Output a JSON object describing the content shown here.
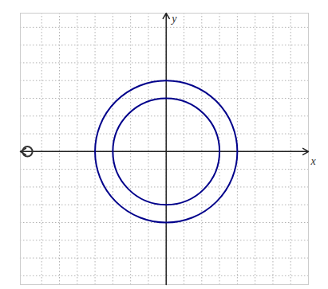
{
  "chart_data": {
    "type": "circles",
    "xlabel": "x",
    "ylabel": "y",
    "xlim": [
      -8.2,
      8.0
    ],
    "ylim": [
      -7.5,
      7.8
    ],
    "xticks": [
      -7,
      -6,
      -5,
      -4,
      -3,
      -2,
      -1,
      0,
      1,
      2,
      3,
      4,
      5,
      6,
      7
    ],
    "yticks": [
      -7,
      -6,
      -5,
      -4,
      -3,
      -2,
      -1,
      0,
      1,
      2,
      3,
      4,
      5,
      6,
      7
    ],
    "grid": true,
    "tick_labels": false,
    "circles": [
      {
        "x": 0,
        "y": 0,
        "radius": 4,
        "color": "#00008B"
      },
      {
        "x": 0,
        "y": 0,
        "radius": 3,
        "color": "#00008B"
      },
      {
        "x": -7.8,
        "y": 0,
        "radius": 0.28,
        "color": "#333333"
      }
    ]
  }
}
